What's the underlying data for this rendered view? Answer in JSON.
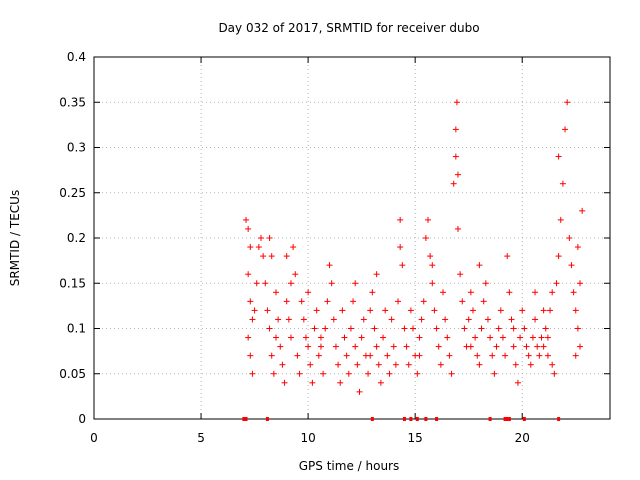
{
  "colors": {
    "series": "#ff0000",
    "frame": "#000000",
    "grid": "#a0a0a0"
  },
  "chart_data": {
    "type": "scatter",
    "title": "Day 032 of 2017, SRMTID for receiver dubo",
    "xlabel": "GPS time / hours",
    "ylabel": "SRMTID / TECUs",
    "xlim": [
      0,
      24.1
    ],
    "ylim": [
      0,
      0.4
    ],
    "grid": true,
    "marker": "plus",
    "xticks": [
      0,
      5,
      10,
      15,
      20
    ],
    "xtick_labels": [
      "0",
      "5",
      "10",
      "15",
      "20"
    ],
    "yticks": [
      0,
      0.05,
      0.1,
      0.15,
      0.2,
      0.25,
      0.3,
      0.35,
      0.4
    ],
    "ytick_labels": [
      "0",
      "0.05",
      "0.1",
      "0.15",
      "0.2",
      "0.25",
      "0.3",
      "0.35",
      "0.4"
    ],
    "series": [
      {
        "name": "SRMTID",
        "points": [
          [
            7.1,
            0.22
          ],
          [
            7.2,
            0.21
          ],
          [
            7.3,
            0.19
          ],
          [
            7.2,
            0.16
          ],
          [
            7.3,
            0.13
          ],
          [
            7.4,
            0.11
          ],
          [
            7.2,
            0.09
          ],
          [
            7.3,
            0.07
          ],
          [
            7.4,
            0.05
          ],
          [
            7.5,
            0.12
          ],
          [
            7.6,
            0.15
          ],
          [
            7.7,
            0.19
          ],
          [
            7.8,
            0.2
          ],
          [
            7.9,
            0.18
          ],
          [
            8.0,
            0.15
          ],
          [
            8.1,
            0.12
          ],
          [
            8.2,
            0.1
          ],
          [
            8.3,
            0.07
          ],
          [
            8.4,
            0.05
          ],
          [
            8.2,
            0.2
          ],
          [
            8.3,
            0.18
          ],
          [
            8.5,
            0.14
          ],
          [
            8.6,
            0.11
          ],
          [
            8.7,
            0.08
          ],
          [
            8.8,
            0.06
          ],
          [
            8.9,
            0.04
          ],
          [
            9.0,
            0.13
          ],
          [
            9.1,
            0.11
          ],
          [
            9.2,
            0.09
          ],
          [
            9.3,
            0.19
          ],
          [
            9.4,
            0.16
          ],
          [
            9.5,
            0.07
          ],
          [
            9.6,
            0.05
          ],
          [
            9.7,
            0.13
          ],
          [
            9.8,
            0.11
          ],
          [
            9.9,
            0.09
          ],
          [
            10.0,
            0.08
          ],
          [
            10.1,
            0.06
          ],
          [
            10.2,
            0.04
          ],
          [
            10.3,
            0.1
          ],
          [
            10.4,
            0.12
          ],
          [
            10.5,
            0.07
          ],
          [
            10.6,
            0.09
          ],
          [
            10.7,
            0.05
          ],
          [
            10.8,
            0.1
          ],
          [
            10.9,
            0.13
          ],
          [
            11.0,
            0.17
          ],
          [
            11.1,
            0.15
          ],
          [
            11.2,
            0.11
          ],
          [
            11.3,
            0.08
          ],
          [
            11.4,
            0.06
          ],
          [
            11.5,
            0.04
          ],
          [
            11.6,
            0.12
          ],
          [
            11.7,
            0.09
          ],
          [
            11.8,
            0.07
          ],
          [
            11.9,
            0.05
          ],
          [
            12.0,
            0.1
          ],
          [
            12.1,
            0.13
          ],
          [
            12.2,
            0.08
          ],
          [
            12.3,
            0.06
          ],
          [
            12.4,
            0.03
          ],
          [
            12.5,
            0.09
          ],
          [
            12.6,
            0.11
          ],
          [
            12.7,
            0.07
          ],
          [
            12.8,
            0.05
          ],
          [
            12.9,
            0.12
          ],
          [
            13.0,
            0.14
          ],
          [
            13.1,
            0.1
          ],
          [
            13.2,
            0.08
          ],
          [
            13.3,
            0.06
          ],
          [
            13.4,
            0.04
          ],
          [
            13.5,
            0.09
          ],
          [
            13.6,
            0.12
          ],
          [
            13.7,
            0.07
          ],
          [
            13.8,
            0.05
          ],
          [
            13.9,
            0.11
          ],
          [
            14.0,
            0.08
          ],
          [
            14.1,
            0.06
          ],
          [
            14.2,
            0.13
          ],
          [
            14.3,
            0.22
          ],
          [
            14.4,
            0.17
          ],
          [
            14.5,
            0.1
          ],
          [
            14.6,
            0.08
          ],
          [
            14.7,
            0.06
          ],
          [
            14.8,
            0.12
          ],
          [
            14.9,
            0.1
          ],
          [
            15.0,
            0.07
          ],
          [
            15.1,
            0.05
          ],
          [
            15.2,
            0.09
          ],
          [
            15.3,
            0.11
          ],
          [
            15.4,
            0.13
          ],
          [
            15.5,
            0.2
          ],
          [
            15.6,
            0.22
          ],
          [
            15.7,
            0.18
          ],
          [
            15.8,
            0.15
          ],
          [
            15.9,
            0.12
          ],
          [
            16.0,
            0.1
          ],
          [
            16.1,
            0.08
          ],
          [
            16.2,
            0.06
          ],
          [
            16.3,
            0.14
          ],
          [
            16.4,
            0.11
          ],
          [
            16.5,
            0.09
          ],
          [
            16.6,
            0.07
          ],
          [
            16.7,
            0.05
          ],
          [
            16.8,
            0.26
          ],
          [
            16.9,
            0.29
          ],
          [
            16.9,
            0.32
          ],
          [
            16.95,
            0.35
          ],
          [
            17.0,
            0.21
          ],
          [
            17.0,
            0.27
          ],
          [
            17.1,
            0.16
          ],
          [
            17.2,
            0.13
          ],
          [
            17.3,
            0.1
          ],
          [
            17.4,
            0.08
          ],
          [
            17.5,
            0.11
          ],
          [
            17.6,
            0.14
          ],
          [
            17.7,
            0.12
          ],
          [
            17.8,
            0.09
          ],
          [
            17.9,
            0.07
          ],
          [
            18.0,
            0.06
          ],
          [
            18.1,
            0.1
          ],
          [
            18.2,
            0.13
          ],
          [
            18.3,
            0.15
          ],
          [
            18.4,
            0.11
          ],
          [
            18.5,
            0.09
          ],
          [
            18.6,
            0.07
          ],
          [
            18.7,
            0.05
          ],
          [
            18.8,
            0.08
          ],
          [
            18.9,
            0.1
          ],
          [
            19.0,
            0.12
          ],
          [
            19.1,
            0.09
          ],
          [
            19.2,
            0.07
          ],
          [
            19.3,
            0.18
          ],
          [
            19.4,
            0.14
          ],
          [
            19.5,
            0.11
          ],
          [
            19.6,
            0.08
          ],
          [
            19.7,
            0.06
          ],
          [
            19.8,
            0.04
          ],
          [
            19.9,
            0.09
          ],
          [
            20.0,
            0.12
          ],
          [
            20.1,
            0.1
          ],
          [
            20.2,
            0.08
          ],
          [
            20.3,
            0.07
          ],
          [
            20.4,
            0.06
          ],
          [
            20.5,
            0.09
          ],
          [
            20.6,
            0.11
          ],
          [
            20.7,
            0.08
          ],
          [
            20.8,
            0.07
          ],
          [
            20.9,
            0.09
          ],
          [
            21.0,
            0.08
          ],
          [
            21.1,
            0.1
          ],
          [
            21.2,
            0.07
          ],
          [
            21.3,
            0.12
          ],
          [
            21.4,
            0.06
          ],
          [
            21.5,
            0.05
          ],
          [
            21.6,
            0.15
          ],
          [
            21.7,
            0.18
          ],
          [
            21.8,
            0.22
          ],
          [
            21.9,
            0.26
          ],
          [
            21.7,
            0.29
          ],
          [
            22.0,
            0.32
          ],
          [
            22.1,
            0.35
          ],
          [
            22.2,
            0.2
          ],
          [
            22.3,
            0.17
          ],
          [
            22.4,
            0.14
          ],
          [
            22.5,
            0.12
          ],
          [
            22.6,
            0.1
          ],
          [
            22.7,
            0.08
          ],
          [
            22.8,
            0.23
          ],
          [
            22.6,
            0.19
          ],
          [
            22.7,
            0.15
          ],
          [
            22.5,
            0.07
          ],
          [
            9.0,
            0.18
          ],
          [
            9.2,
            0.15
          ],
          [
            10.0,
            0.14
          ],
          [
            12.2,
            0.15
          ],
          [
            13.2,
            0.16
          ],
          [
            14.3,
            0.19
          ],
          [
            15.8,
            0.17
          ],
          [
            18.0,
            0.17
          ],
          [
            20.6,
            0.14
          ],
          [
            21.0,
            0.12
          ],
          [
            21.4,
            0.14
          ],
          [
            8.5,
            0.09
          ],
          [
            10.6,
            0.08
          ],
          [
            12.9,
            0.07
          ],
          [
            15.2,
            0.07
          ],
          [
            17.6,
            0.08
          ],
          [
            19.6,
            0.1
          ],
          [
            21.2,
            0.09
          ]
        ]
      }
    ],
    "zero_marks": [
      7.0,
      7.1,
      8.1,
      13.0,
      14.5,
      14.8,
      15.1,
      15.5,
      16.0,
      18.5,
      19.2,
      19.3,
      19.4,
      20.1,
      21.7
    ]
  }
}
